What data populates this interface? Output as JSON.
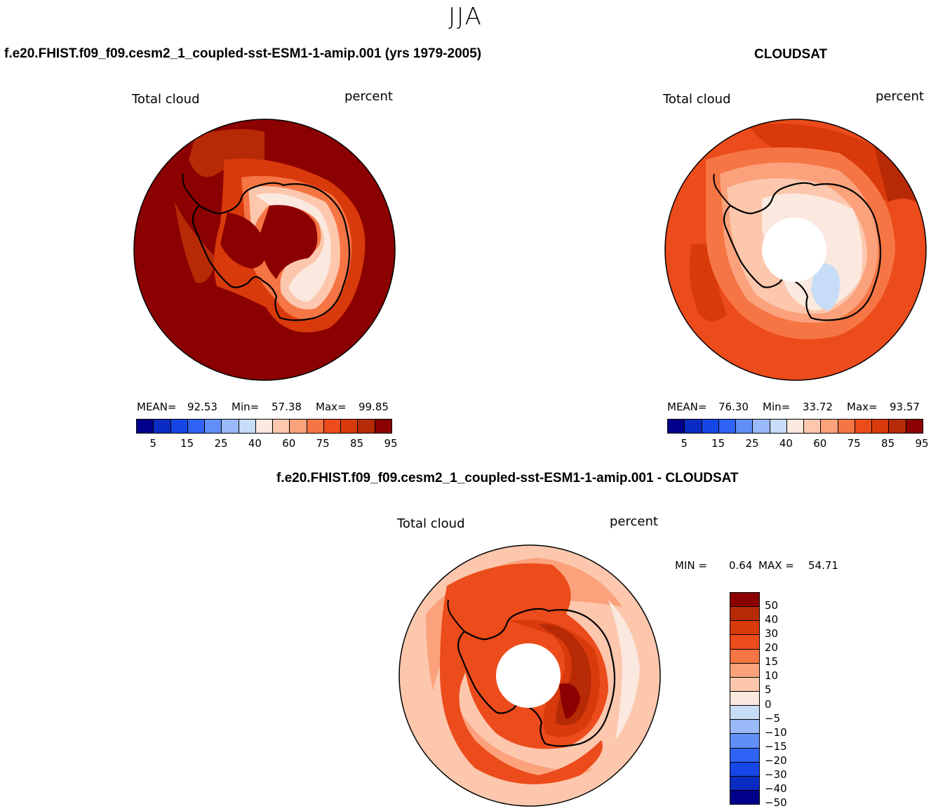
{
  "title": "JJA",
  "colors": {
    "scale16": [
      "#00008b",
      "#0a2bc2",
      "#1746e6",
      "#2f63f5",
      "#5f8ff7",
      "#9ab9f8",
      "#c7dcf7",
      "#fbe8de",
      "#fcc7ad",
      "#fba27c",
      "#f67544",
      "#ec4b1b",
      "#d93a0b",
      "#b62a06",
      "#8b0000"
    ]
  },
  "panels": {
    "model": {
      "header": "f.e20.FHIST.f09_f09.cesm2_1_coupled-sst-ESM1-1-amip.001 (yrs 1979-2005)",
      "variable": "Total cloud",
      "units": "percent",
      "stats": {
        "mean_label": "MEAN=",
        "mean": "92.53",
        "min_label": "Min=",
        "min": "57.38",
        "max_label": "Max=",
        "max": "99.85"
      },
      "colorbar_ticks": [
        "5",
        "15",
        "25",
        "40",
        "60",
        "75",
        "85",
        "95"
      ]
    },
    "obs": {
      "header": "CLOUDSAT",
      "variable": "Total cloud",
      "units": "percent",
      "stats": {
        "mean_label": "MEAN=",
        "mean": "76.30",
        "min_label": "Min=",
        "min": "33.72",
        "max_label": "Max=",
        "max": "93.57"
      },
      "colorbar_ticks": [
        "5",
        "15",
        "25",
        "40",
        "60",
        "75",
        "85",
        "95"
      ]
    },
    "diff": {
      "header": "f.e20.FHIST.f09_f09.cesm2_1_coupled-sst-ESM1-1-amip.001 - CLOUDSAT",
      "variable": "Total cloud",
      "units": "percent",
      "stats": {
        "min_label": "MIN =",
        "min": "0.64",
        "max_label": "MAX =",
        "max": "54.71"
      },
      "colorbar_ticks": [
        "50",
        "40",
        "30",
        "20",
        "15",
        "10",
        "5",
        "0",
        "−5",
        "−10",
        "−15",
        "−20",
        "−30",
        "−40",
        "−50"
      ]
    }
  }
}
